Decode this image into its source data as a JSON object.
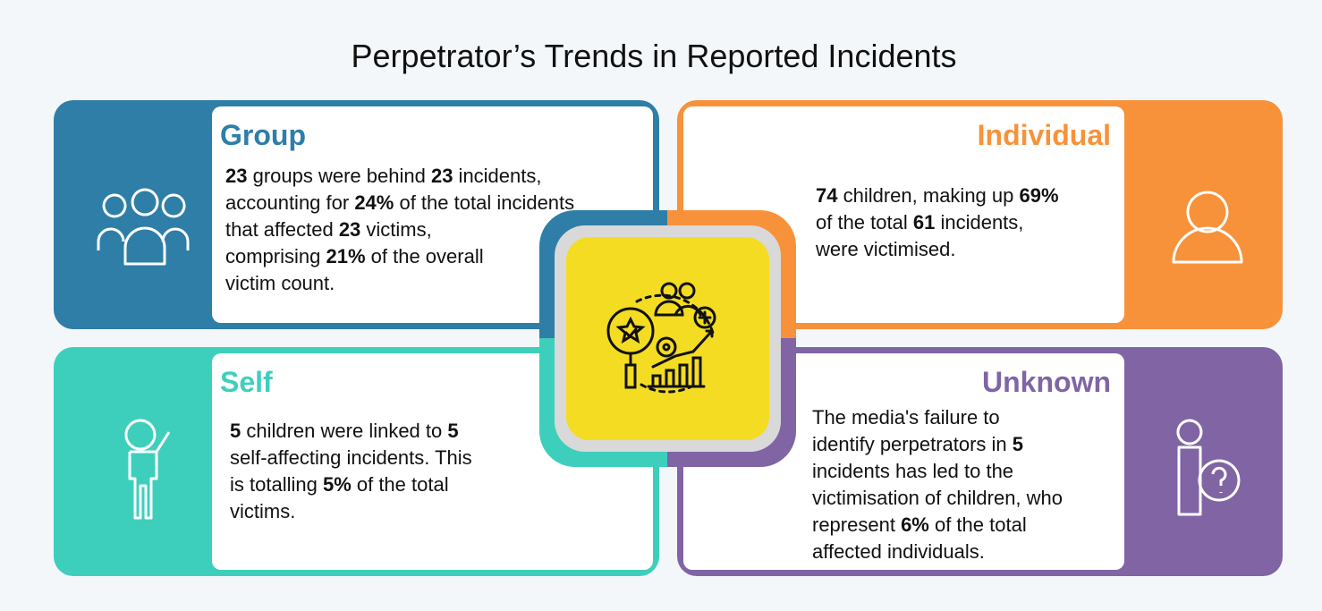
{
  "title": "Perpetrator’s Trends in Reported Incidents",
  "cards": [
    {
      "heading": "Group",
      "color": "#2e7ea8",
      "lines": [
        [
          {
            "text": "23",
            "bold": true
          },
          {
            "text": " groups were behind "
          },
          {
            "text": "23",
            "bold": true
          },
          {
            "text": " incidents,"
          }
        ],
        [
          {
            "text": "accounting for "
          },
          {
            "text": "24%",
            "bold": true
          },
          {
            "text": " of the total incidents"
          }
        ],
        [
          {
            "text": "that affected "
          },
          {
            "text": "23",
            "bold": true
          },
          {
            "text": " victims,"
          }
        ],
        [
          {
            "text": "comprising "
          },
          {
            "text": "21%",
            "bold": true
          },
          {
            "text": " of the overall"
          }
        ],
        [
          {
            "text": "victim count."
          }
        ]
      ]
    },
    {
      "heading": "Individual",
      "color": "#f7923a",
      "lines": [
        [
          {
            "text": "74",
            "bold": true
          },
          {
            "text": " children, making up "
          },
          {
            "text": "69%",
            "bold": true
          }
        ],
        [
          {
            "text": "of the total "
          },
          {
            "text": "61",
            "bold": true
          },
          {
            "text": " incidents,"
          }
        ],
        [
          {
            "text": "were victimised."
          }
        ]
      ]
    },
    {
      "heading": "Self",
      "color": "#3ecfbc",
      "lines": [
        [
          {
            "text": "5",
            "bold": true
          },
          {
            "text": " children were linked to "
          },
          {
            "text": "5",
            "bold": true
          }
        ],
        [
          {
            "text": "self-affecting incidents. This"
          }
        ],
        [
          {
            "text": "is totalling "
          },
          {
            "text": "5%",
            "bold": true
          },
          {
            "text": " of the total"
          }
        ],
        [
          {
            "text": "victims."
          }
        ]
      ]
    },
    {
      "heading": "Unknown",
      "color": "#8064a4",
      "lines": [
        [
          {
            "text": "The media's failure to"
          }
        ],
        [
          {
            "text": "identify perpetrators in "
          },
          {
            "text": "5",
            "bold": true
          }
        ],
        [
          {
            "text": "incidents has led to the"
          }
        ],
        [
          {
            "text": "victimisation of children, who"
          }
        ],
        [
          {
            "text": "represent "
          },
          {
            "text": "6%",
            "bold": true
          },
          {
            "text": " of the total"
          }
        ],
        [
          {
            "text": "affected individuals."
          }
        ]
      ]
    }
  ]
}
